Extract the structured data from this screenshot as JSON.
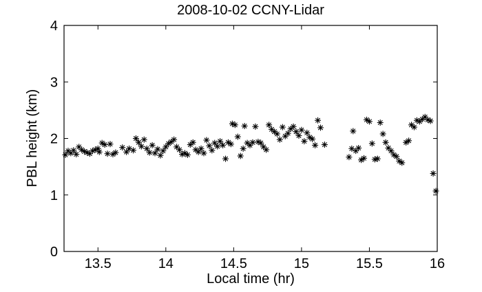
{
  "chart_data": {
    "type": "scatter",
    "title": "2008-10-02 CCNY-Lidar",
    "xlabel": "Local time (hr)",
    "ylabel": "PBL height (km)",
    "xlim": [
      13.25,
      16.0
    ],
    "ylim": [
      0,
      4
    ],
    "xticks": [
      13.5,
      14,
      14.5,
      15,
      15.5,
      16
    ],
    "xtick_labels": [
      "13.5",
      "14",
      "14.5",
      "15",
      "15.5",
      "16"
    ],
    "yticks": [
      0,
      1,
      2,
      3,
      4
    ],
    "ytick_labels": [
      "0",
      "1",
      "2",
      "3",
      "4"
    ],
    "grid": false,
    "marker": "asterisk",
    "marker_color": "#000000",
    "series": [
      {
        "points": [
          [
            13.26,
            1.71
          ],
          [
            13.28,
            1.78
          ],
          [
            13.3,
            1.74
          ],
          [
            13.32,
            1.79
          ],
          [
            13.34,
            1.72
          ],
          [
            13.36,
            1.85
          ],
          [
            13.38,
            1.8
          ],
          [
            13.4,
            1.77
          ],
          [
            13.42,
            1.75
          ],
          [
            13.44,
            1.73
          ],
          [
            13.46,
            1.78
          ],
          [
            13.48,
            1.8
          ],
          [
            13.5,
            1.82
          ],
          [
            13.51,
            1.76
          ],
          [
            13.53,
            1.92
          ],
          [
            13.55,
            1.89
          ],
          [
            13.57,
            1.73
          ],
          [
            13.59,
            1.9
          ],
          [
            13.61,
            1.72
          ],
          [
            13.63,
            1.75
          ],
          [
            13.68,
            1.84
          ],
          [
            13.71,
            1.76
          ],
          [
            13.73,
            1.82
          ],
          [
            13.76,
            1.79
          ],
          [
            13.78,
            2.0
          ],
          [
            13.8,
            1.93
          ],
          [
            13.82,
            1.86
          ],
          [
            13.84,
            1.98
          ],
          [
            13.86,
            1.82
          ],
          [
            13.88,
            1.75
          ],
          [
            13.9,
            1.88
          ],
          [
            13.92,
            1.74
          ],
          [
            13.94,
            1.81
          ],
          [
            13.96,
            1.7
          ],
          [
            13.98,
            1.78
          ],
          [
            14.0,
            1.85
          ],
          [
            14.02,
            1.91
          ],
          [
            14.04,
            1.94
          ],
          [
            14.06,
            1.98
          ],
          [
            14.08,
            1.85
          ],
          [
            14.1,
            1.8
          ],
          [
            14.12,
            1.72
          ],
          [
            14.14,
            1.74
          ],
          [
            14.16,
            1.71
          ],
          [
            14.18,
            1.89
          ],
          [
            14.2,
            1.93
          ],
          [
            14.22,
            1.8
          ],
          [
            14.24,
            1.76
          ],
          [
            14.26,
            1.82
          ],
          [
            14.28,
            1.74
          ],
          [
            14.3,
            1.97
          ],
          [
            14.32,
            1.87
          ],
          [
            14.34,
            1.79
          ],
          [
            14.36,
            1.92
          ],
          [
            14.38,
            1.86
          ],
          [
            14.4,
            1.95
          ],
          [
            14.42,
            1.88
          ],
          [
            14.44,
            1.64
          ],
          [
            14.46,
            1.93
          ],
          [
            14.48,
            1.9
          ],
          [
            14.49,
            2.26
          ],
          [
            14.51,
            2.24
          ],
          [
            14.53,
            2.03
          ],
          [
            14.55,
            1.69
          ],
          [
            14.57,
            1.82
          ],
          [
            14.58,
            2.22
          ],
          [
            14.6,
            1.92
          ],
          [
            14.62,
            1.88
          ],
          [
            14.64,
            1.93
          ],
          [
            14.66,
            2.21
          ],
          [
            14.68,
            1.94
          ],
          [
            14.7,
            1.92
          ],
          [
            14.72,
            1.85
          ],
          [
            14.74,
            1.8
          ],
          [
            14.76,
            2.24
          ],
          [
            14.78,
            2.16
          ],
          [
            14.8,
            2.12
          ],
          [
            14.82,
            2.08
          ],
          [
            14.84,
            1.98
          ],
          [
            14.86,
            2.2
          ],
          [
            14.88,
            2.04
          ],
          [
            14.9,
            2.09
          ],
          [
            14.92,
            2.17
          ],
          [
            14.94,
            2.21
          ],
          [
            14.96,
            2.12
          ],
          [
            14.98,
            2.05
          ],
          [
            15.0,
            2.15
          ],
          [
            15.02,
            1.95
          ],
          [
            15.04,
            2.1
          ],
          [
            15.06,
            2.02
          ],
          [
            15.08,
            1.99
          ],
          [
            15.1,
            1.88
          ],
          [
            15.12,
            2.32
          ],
          [
            15.14,
            2.19
          ],
          [
            15.17,
            1.89
          ],
          [
            15.35,
            1.67
          ],
          [
            15.37,
            1.82
          ],
          [
            15.38,
            2.13
          ],
          [
            15.4,
            1.78
          ],
          [
            15.42,
            1.83
          ],
          [
            15.44,
            1.62
          ],
          [
            15.46,
            1.65
          ],
          [
            15.48,
            2.33
          ],
          [
            15.5,
            2.3
          ],
          [
            15.52,
            1.91
          ],
          [
            15.54,
            1.63
          ],
          [
            15.56,
            1.64
          ],
          [
            15.58,
            2.28
          ],
          [
            15.6,
            2.08
          ],
          [
            15.62,
            1.93
          ],
          [
            15.64,
            1.83
          ],
          [
            15.66,
            1.78
          ],
          [
            15.68,
            1.71
          ],
          [
            15.7,
            1.68
          ],
          [
            15.72,
            1.6
          ],
          [
            15.74,
            1.57
          ],
          [
            15.77,
            1.93
          ],
          [
            15.79,
            1.96
          ],
          [
            15.81,
            2.24
          ],
          [
            15.83,
            2.2
          ],
          [
            15.85,
            2.32
          ],
          [
            15.87,
            2.3
          ],
          [
            15.89,
            2.34
          ],
          [
            15.91,
            2.38
          ],
          [
            15.93,
            2.33
          ],
          [
            15.95,
            2.31
          ],
          [
            15.97,
            1.38
          ],
          [
            15.99,
            1.07
          ]
        ]
      }
    ]
  }
}
